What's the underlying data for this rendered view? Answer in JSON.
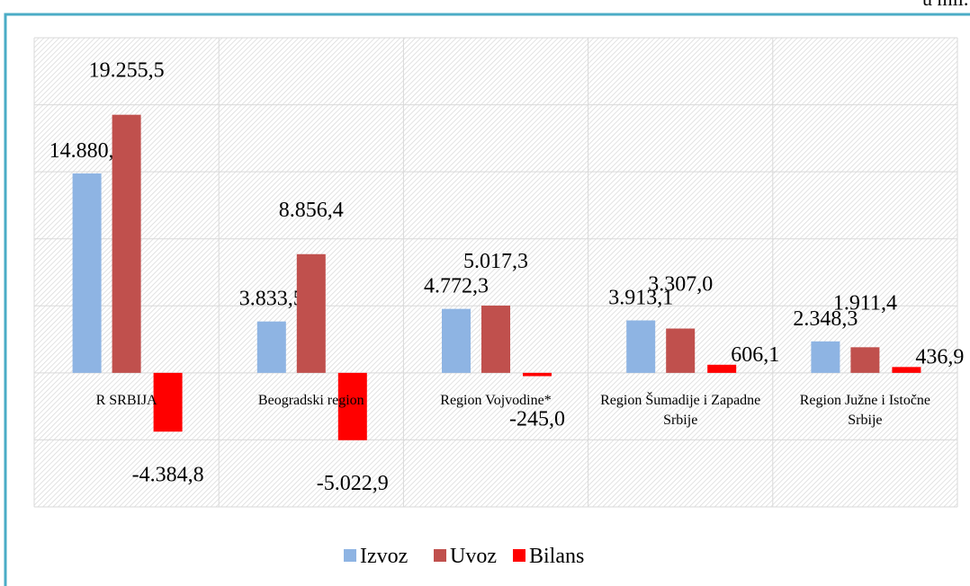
{
  "chart_data": {
    "type": "bar",
    "annotation": "u mil. US",
    "categories": [
      "R SRBIJA",
      "Beogradski region",
      "Region Vojvodine*",
      "Region Šumadije i Zapadne Srbije",
      "Region Južne i Istočne Srbije"
    ],
    "series": [
      {
        "name": "Izvoz",
        "color": "#8eb4e3",
        "values": [
          14880.7,
          3833.5,
          4772.3,
          3913.1,
          2348.3
        ],
        "value_labels": [
          "14.880,7",
          "3.833,5",
          "4.772,3",
          "3.913,1",
          "2.348,3"
        ]
      },
      {
        "name": "Uvoz",
        "color": "#c0504d",
        "values": [
          19255.5,
          8856.4,
          5017.3,
          3307.0,
          1911.4
        ],
        "value_labels": [
          "19.255,5",
          "8.856,4",
          "5.017,3",
          "3.307,0",
          "1.911,4"
        ]
      },
      {
        "name": "Bilans",
        "color": "#ff0000",
        "values": [
          -4384.8,
          -5022.9,
          -245.0,
          606.1,
          436.9
        ],
        "value_labels": [
          "-4.384,8",
          "-5.022,9",
          "-245,0",
          "606,1",
          "436,9"
        ]
      }
    ],
    "ylim": [
      -10000,
      25000
    ],
    "yticks": [
      -10000,
      -5000,
      0,
      5000,
      10000,
      15000,
      20000,
      25000
    ],
    "grid": true,
    "legend": "bottom"
  }
}
